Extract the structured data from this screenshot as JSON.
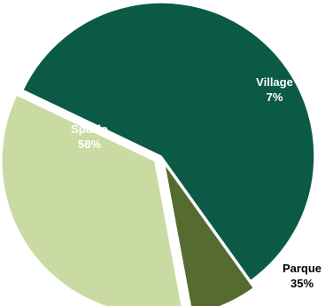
{
  "chart_data": {
    "type": "pie",
    "slices": [
      {
        "name": "Spazio",
        "value": 58,
        "value_label": "58%",
        "color": "#0b5a45",
        "label_color": "#ffffff"
      },
      {
        "name": "Village",
        "value": 7,
        "value_label": "7%",
        "color": "#556b2f",
        "label_color": "#ffffff"
      },
      {
        "name": "Parque",
        "value": 35,
        "value_label": "35%",
        "color": "#c9dba2",
        "label_color": "#000000"
      }
    ],
    "exploded": true,
    "legend": "none",
    "unit": "%"
  }
}
